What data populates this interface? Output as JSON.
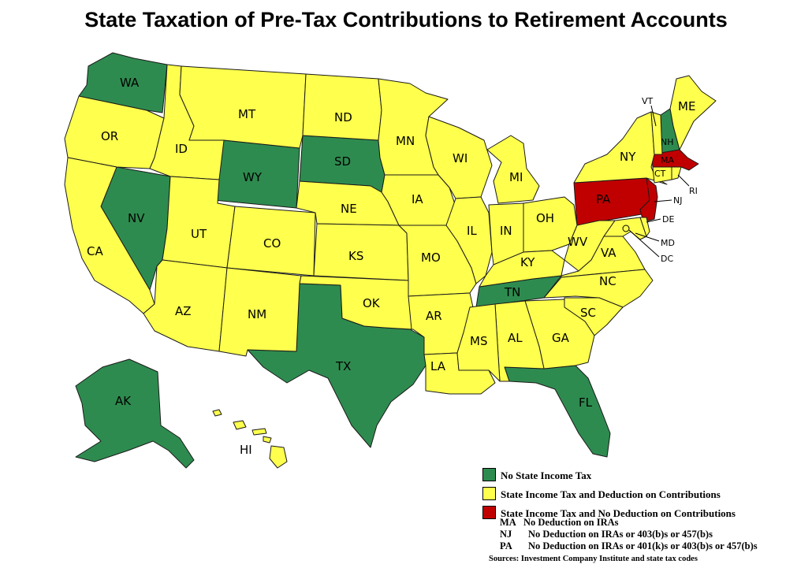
{
  "title": "State Taxation of Pre-Tax Contributions to Retirement Accounts",
  "colors": {
    "no_tax": "#2e8b4f",
    "deduction": "#ffff4d",
    "no_deduction": "#c00000"
  },
  "state_labels": {
    "WA": "WA",
    "OR": "OR",
    "CA": "CA",
    "NV": "NV",
    "ID": "ID",
    "MT": "MT",
    "WY": "WY",
    "UT": "UT",
    "AZ": "AZ",
    "CO": "CO",
    "NM": "NM",
    "ND": "ND",
    "SD": "SD",
    "NE": "NE",
    "KS": "KS",
    "OK": "OK",
    "TX": "TX",
    "MN": "MN",
    "IA": "IA",
    "MO": "MO",
    "AR": "AR",
    "LA": "LA",
    "WI": "WI",
    "IL": "IL",
    "MI": "MI",
    "IN": "IN",
    "OH": "OH",
    "KY": "KY",
    "TN": "TN",
    "MS": "MS",
    "AL": "AL",
    "GA": "GA",
    "FL": "FL",
    "SC": "SC",
    "NC": "NC",
    "VA": "VA",
    "WV": "WV",
    "PA": "PA",
    "NY": "NY",
    "VT": "VT",
    "NH": "NH",
    "ME": "ME",
    "MA": "MA",
    "CT": "CT",
    "RI": "RI",
    "NJ": "NJ",
    "DE": "DE",
    "MD": "MD",
    "DC": "DC",
    "AK": "AK",
    "HI": "HI"
  },
  "legend": {
    "no_tax": "No State Income Tax",
    "deduction": "State Income Tax and Deduction on Contributions",
    "no_deduction": "State Income Tax and No Deduction on Contributions",
    "notes": [
      {
        "state": "MA",
        "text": "No Deduction on IRAs"
      },
      {
        "state": "NJ",
        "text": "No Deduction on IRAs or 403(b)s or 457(b)s"
      },
      {
        "state": "PA",
        "text": "No Deduction on IRAs or 401(k)s or 403(b)s or 457(b)s"
      }
    ],
    "source": "Sources: Investment Company Institute and state tax codes"
  }
}
